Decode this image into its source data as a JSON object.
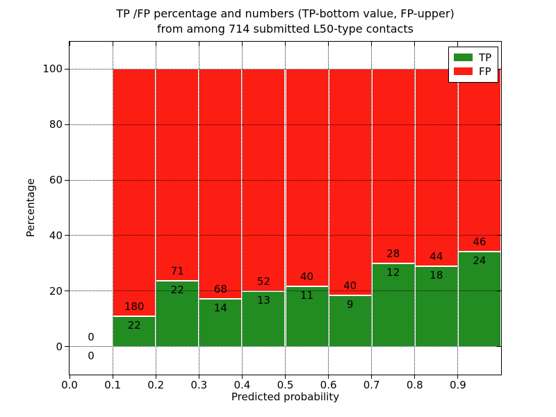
{
  "chart_data": {
    "type": "bar",
    "stacked": true,
    "normalized_to_100_percent": true,
    "title_lines": [
      "TP /FP percentage and numbers (TP-bottom value, FP-upper)",
      "from among 714 submitted L50-type contacts"
    ],
    "xlabel": "Predicted probability",
    "ylabel": "Percentage",
    "xlim": [
      0.0,
      1.0
    ],
    "ylim": [
      -10,
      110
    ],
    "xticks": [
      0.0,
      0.1,
      0.2,
      0.3,
      0.4,
      0.5,
      0.6,
      0.7,
      0.8,
      0.9
    ],
    "xtick_labels": [
      "0.0",
      "0.1",
      "0.2",
      "0.3",
      "0.4",
      "0.5",
      "0.6",
      "0.7",
      "0.8",
      "0.9"
    ],
    "yticks": [
      0,
      20,
      40,
      60,
      80,
      100
    ],
    "grid": "dotted, both axes, drawn above bars",
    "legend_position": "upper right",
    "total_contacts": 714,
    "bin_edges": [
      0.0,
      0.1,
      0.2,
      0.3,
      0.4,
      0.5,
      0.6,
      0.7,
      0.8,
      0.9,
      1.0
    ],
    "series": [
      {
        "name": "TP",
        "color": "#228b22",
        "counts": [
          0,
          22,
          22,
          14,
          13,
          11,
          9,
          12,
          18,
          24
        ],
        "percents_approx": [
          0,
          10.89,
          23.66,
          17.07,
          20.0,
          21.57,
          18.37,
          30.0,
          29.03,
          34.29
        ]
      },
      {
        "name": "FP",
        "color": "#fc1d13",
        "counts": [
          0,
          180,
          71,
          68,
          52,
          40,
          40,
          28,
          44,
          46
        ],
        "percents_approx": [
          0,
          89.11,
          76.34,
          82.93,
          80.0,
          78.43,
          81.63,
          70.0,
          70.97,
          65.71
        ]
      }
    ],
    "bar_edge_color": "#ffffff",
    "annotation_note_from_title": "TP-bottom value, FP-upper"
  },
  "style": {
    "background": "#ffffff",
    "spine_color": "#000000",
    "grid_color": "#000000",
    "text_color": "#000000"
  }
}
